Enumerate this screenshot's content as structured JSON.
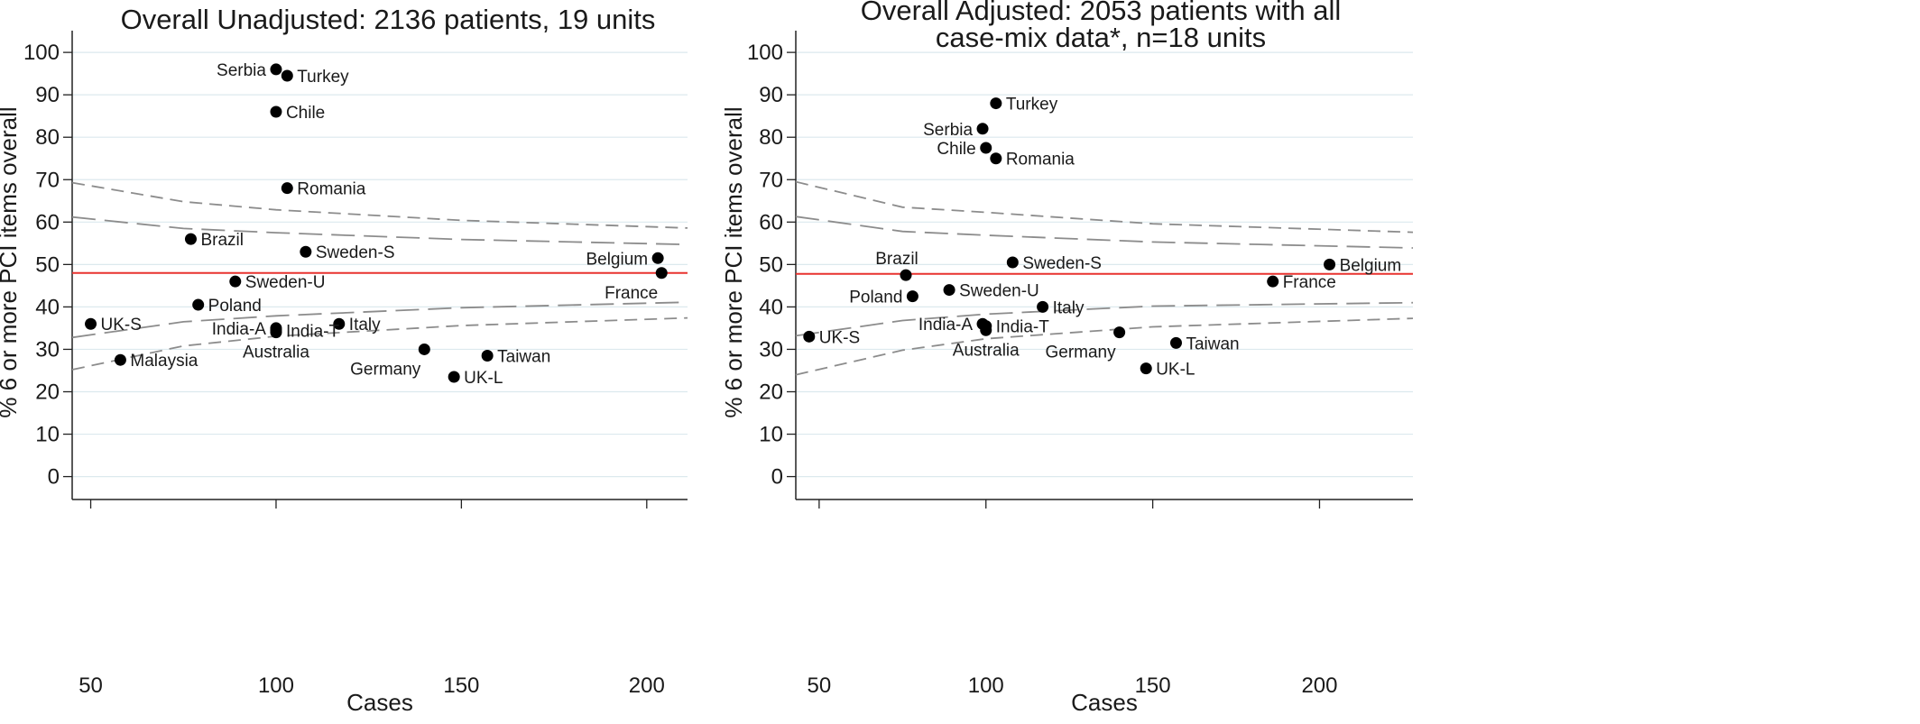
{
  "chart_data": [
    {
      "type": "scatter",
      "title": [
        "Overall Unadjusted:  2136 patients, 19 units"
      ],
      "xlabel": "Cases",
      "ylabel": "% 6 or more PCI items overall",
      "xlim": [
        45,
        211
      ],
      "ylim": [
        -2,
        103
      ],
      "xticks": [
        50,
        100,
        150,
        200
      ],
      "yticks": [
        0,
        10,
        20,
        30,
        40,
        50,
        60,
        70,
        80,
        90,
        100
      ],
      "grid": true,
      "reference_line": {
        "y": 48,
        "color": "#e8322f"
      },
      "limits": {
        "inner": {
          "upper": [
            [
              45,
              61.2
            ],
            [
              75,
              58.5
            ],
            [
              100,
              57.5
            ],
            [
              150,
              55.9
            ],
            [
              211,
              54.7
            ]
          ],
          "lower": [
            [
              45,
              32.8
            ],
            [
              75,
              36.5
            ],
            [
              100,
              37.9
            ],
            [
              150,
              39.8
            ],
            [
              211,
              41.1
            ]
          ]
        },
        "outer": {
          "upper": [
            [
              45,
              69.3
            ],
            [
              75,
              64.8
            ],
            [
              100,
              62.9
            ],
            [
              150,
              60.4
            ],
            [
              211,
              58.6
            ]
          ],
          "lower": [
            [
              45,
              25.2
            ],
            [
              75,
              30.8
            ],
            [
              100,
              33.1
            ],
            [
              150,
              35.6
            ],
            [
              211,
              37.4
            ]
          ]
        }
      },
      "points": [
        {
          "label": "Serbia",
          "x": 100,
          "y": 96,
          "pos": "left"
        },
        {
          "label": "Turkey",
          "x": 103,
          "y": 94.5,
          "pos": "right"
        },
        {
          "label": "Chile",
          "x": 100,
          "y": 86,
          "pos": "right"
        },
        {
          "label": "Romania",
          "x": 103,
          "y": 68,
          "pos": "right"
        },
        {
          "label": "Brazil",
          "x": 77,
          "y": 56,
          "pos": "right"
        },
        {
          "label": "Sweden-S",
          "x": 108,
          "y": 53,
          "pos": "right"
        },
        {
          "label": "Belgium",
          "x": 203,
          "y": 51.5,
          "pos": "left"
        },
        {
          "label": "France",
          "x": 204,
          "y": 48,
          "pos": "below-left"
        },
        {
          "label": "Sweden-U",
          "x": 89,
          "y": 46,
          "pos": "right"
        },
        {
          "label": "Poland",
          "x": 79,
          "y": 40.5,
          "pos": "right"
        },
        {
          "label": "UK-S",
          "x": 50,
          "y": 36,
          "pos": "right"
        },
        {
          "label": "Italy",
          "x": 117,
          "y": 36,
          "pos": "right"
        },
        {
          "label": "India-A",
          "x": 100,
          "y": 35,
          "pos": "left"
        },
        {
          "label": "India-T",
          "x": 100,
          "y": 34.5,
          "pos": "right"
        },
        {
          "label": "Australia",
          "x": 100,
          "y": 34,
          "pos": "below"
        },
        {
          "label": "Germany",
          "x": 140,
          "y": 30,
          "pos": "below-left"
        },
        {
          "label": "Taiwan",
          "x": 157,
          "y": 28.5,
          "pos": "right"
        },
        {
          "label": "Malaysia",
          "x": 58,
          "y": 27.5,
          "pos": "right"
        },
        {
          "label": "UK-L",
          "x": 148,
          "y": 23.5,
          "pos": "right"
        }
      ]
    },
    {
      "type": "scatter",
      "title": [
        "Overall Adjusted: 2053 patients with all",
        "case-mix data*, n=18 units"
      ],
      "xlabel": "Cases",
      "ylabel": "% 6 or more PCI items overall",
      "xlim": [
        43,
        228
      ],
      "ylim": [
        -2,
        103
      ],
      "xticks": [
        50,
        100,
        150,
        200
      ],
      "yticks": [
        0,
        10,
        20,
        30,
        40,
        50,
        60,
        70,
        80,
        90,
        100
      ],
      "grid": true,
      "reference_line": {
        "y": 47.8,
        "color": "#e8322f"
      },
      "limits": {
        "inner": {
          "upper": [
            [
              43,
              61.3
            ],
            [
              75,
              57.8
            ],
            [
              100,
              56.9
            ],
            [
              150,
              55.3
            ],
            [
              228,
              53.9
            ]
          ],
          "lower": [
            [
              43,
              33.2
            ],
            [
              75,
              36.8
            ],
            [
              100,
              38.3
            ],
            [
              150,
              40.2
            ],
            [
              228,
              41.0
            ]
          ]
        },
        "outer": {
          "upper": [
            [
              43,
              69.5
            ],
            [
              75,
              63.5
            ],
            [
              100,
              62.3
            ],
            [
              150,
              59.6
            ],
            [
              228,
              57.6
            ]
          ],
          "lower": [
            [
              43,
              24.0
            ],
            [
              75,
              29.8
            ],
            [
              100,
              32.5
            ],
            [
              150,
              35.3
            ],
            [
              228,
              37.3
            ]
          ]
        }
      },
      "points": [
        {
          "label": "Turkey",
          "x": 103,
          "y": 88,
          "pos": "right"
        },
        {
          "label": "Serbia",
          "x": 99,
          "y": 82,
          "pos": "left"
        },
        {
          "label": "Chile",
          "x": 100,
          "y": 77.5,
          "pos": "left"
        },
        {
          "label": "Romania",
          "x": 103,
          "y": 75,
          "pos": "right"
        },
        {
          "label": "Sweden-S",
          "x": 108,
          "y": 50.5,
          "pos": "right"
        },
        {
          "label": "Belgium",
          "x": 203,
          "y": 50,
          "pos": "right"
        },
        {
          "label": "Brazil",
          "x": 76,
          "y": 47.5,
          "pos": "above"
        },
        {
          "label": "France",
          "x": 186,
          "y": 46,
          "pos": "right"
        },
        {
          "label": "Sweden-U",
          "x": 89,
          "y": 44,
          "pos": "right"
        },
        {
          "label": "Poland",
          "x": 78,
          "y": 42.5,
          "pos": "left"
        },
        {
          "label": "Italy",
          "x": 117,
          "y": 40,
          "pos": "right"
        },
        {
          "label": "India-A",
          "x": 99,
          "y": 36,
          "pos": "left"
        },
        {
          "label": "India-T",
          "x": 100,
          "y": 35.5,
          "pos": "right"
        },
        {
          "label": "Australia",
          "x": 100,
          "y": 34.5,
          "pos": "below"
        },
        {
          "label": "Germany",
          "x": 140,
          "y": 34,
          "pos": "below-left"
        },
        {
          "label": "UK-S",
          "x": 47,
          "y": 33,
          "pos": "right"
        },
        {
          "label": "Taiwan",
          "x": 157,
          "y": 31.5,
          "pos": "right"
        },
        {
          "label": "UK-L",
          "x": 148,
          "y": 25.5,
          "pos": "right"
        }
      ]
    }
  ]
}
